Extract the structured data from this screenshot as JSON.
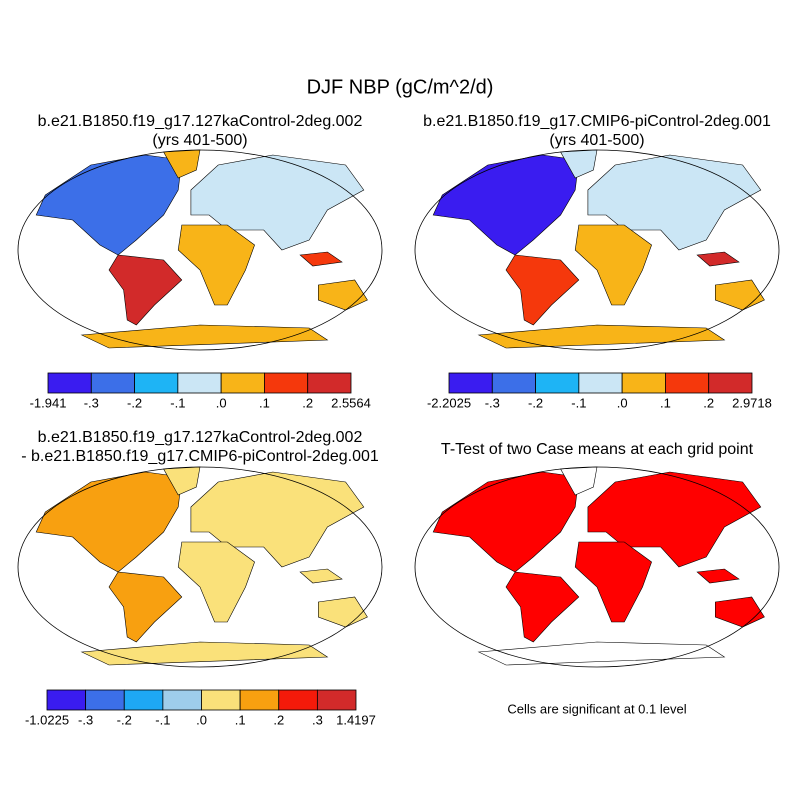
{
  "title": "DJF NBP (gC/m^2/d)",
  "panels": [
    {
      "title": [
        "b.e21.B1850.f19_g17.127kaControl-2deg.002",
        "(yrs 401-500)"
      ],
      "colorbar": {
        "colors": [
          "#3a1cf0",
          "#3c6fe8",
          "#1eb4f5",
          "#cbe6f5",
          "#f8b418",
          "#f5380c",
          "#d22a2a"
        ],
        "labels": [
          "-1.941",
          "-.3",
          "-.2",
          "-.1",
          ".0",
          ".1",
          ".2",
          "2.5564"
        ]
      }
    },
    {
      "title": [
        "b.e21.B1850.f19_g17.CMIP6-piControl-2deg.001",
        "(yrs 401-500)"
      ],
      "colorbar": {
        "colors": [
          "#3a1cf0",
          "#3c6fe8",
          "#1eb4f5",
          "#cbe6f5",
          "#f8b418",
          "#f5380c",
          "#d22a2a"
        ],
        "labels": [
          "-2.2025",
          "-.3",
          "-.2",
          "-.1",
          ".0",
          ".1",
          ".2",
          "2.9718"
        ]
      }
    },
    {
      "title": [
        "b.e21.B1850.f19_g17.127kaControl-2deg.002",
        "- b.e21.B1850.f19_g17.CMIP6-piControl-2deg.001"
      ],
      "colorbar": {
        "colors": [
          "#3a1cf0",
          "#3c6fe8",
          "#1ea8f5",
          "#9ecdeb",
          "#fae17a",
          "#f8a010",
          "#f51a0a",
          "#d22a2a"
        ],
        "labels": [
          "-1.0225",
          "-.3",
          "-.2",
          "-.1",
          ".0",
          ".1",
          ".2",
          ".3",
          "1.4197"
        ]
      }
    },
    {
      "title": [
        "T-Test of two Case means at each grid point"
      ],
      "note": "Cells are significant at 0.1 level"
    }
  ]
}
